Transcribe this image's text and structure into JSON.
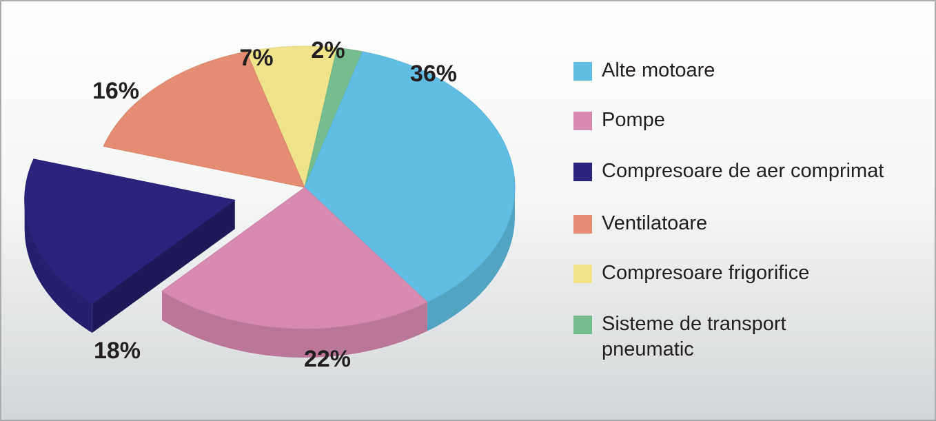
{
  "chart_data": {
    "type": "pie",
    "title": "",
    "slices": [
      {
        "label": "Alte motoare",
        "value": 36,
        "value_label": "36%",
        "color": "#61bde3"
      },
      {
        "label": "Pompe",
        "value": 22,
        "value_label": "22%",
        "color": "#d88ab0"
      },
      {
        "label": "Compresoare de aer comprimat",
        "value": 18,
        "value_label": "18%",
        "color": "#2a247d"
      },
      {
        "label": "Ventilatoare",
        "value": 16,
        "value_label": "16%",
        "color": "#e48d72"
      },
      {
        "label": "Compresoare frigorifice",
        "value": 7,
        "value_label": "7%",
        "color": "#efe48c"
      },
      {
        "label": "Sisteme de transport\npneumatic",
        "value": 2,
        "value_label": "2%",
        "color": "#75bd8e"
      }
    ],
    "legend_position": "right",
    "exploded_slice": "Compresoare de aer comprimat",
    "style": "3d"
  }
}
